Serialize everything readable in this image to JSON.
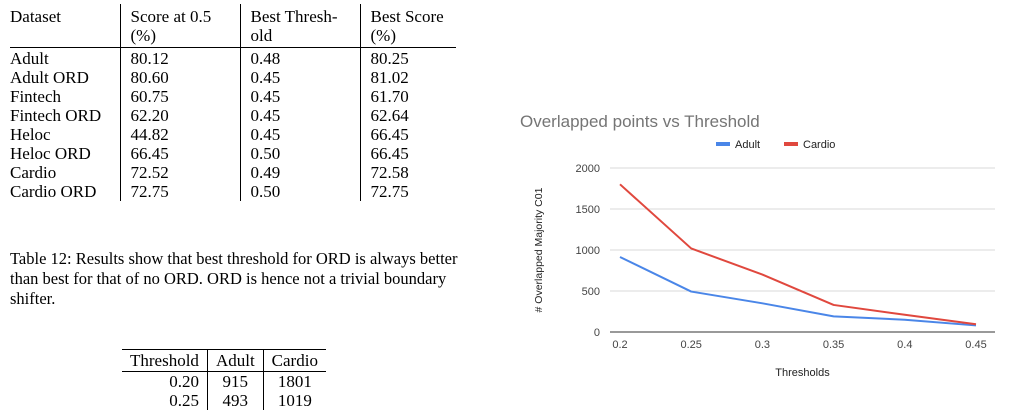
{
  "table12": {
    "header": [
      [
        "Dataset"
      ],
      [
        "Score at 0.5",
        "(%)"
      ],
      [
        "Best Thresh-",
        "old"
      ],
      [
        "Best Score",
        "(%)"
      ]
    ],
    "rows": [
      [
        "Adult",
        "80.12",
        "0.48",
        "80.25"
      ],
      [
        "Adult ORD",
        "80.60",
        "0.45",
        "81.02"
      ],
      [
        "Fintech",
        "60.75",
        "0.45",
        "61.70"
      ],
      [
        "Fintech ORD",
        "62.20",
        "0.45",
        "62.64"
      ],
      [
        "Heloc",
        "44.82",
        "0.45",
        "66.45"
      ],
      [
        "Heloc ORD",
        "66.45",
        "0.50",
        "66.45"
      ],
      [
        "Cardio",
        "72.52",
        "0.49",
        "72.58"
      ],
      [
        "Cardio ORD",
        "72.75",
        "0.50",
        "72.75"
      ]
    ],
    "caption": "Table 12: Results show that best threshold for ORD is always better than best for that of no ORD. ORD is hence not a trivial boundary shifter."
  },
  "table13": {
    "header": [
      "Threshold",
      "Adult",
      "Cardio"
    ],
    "rows": [
      [
        "0.20",
        "915",
        "1801"
      ],
      [
        "0.25",
        "493",
        "1019"
      ]
    ]
  },
  "chart_data": {
    "type": "line",
    "title": "Overlapped points vs Threshold",
    "xlabel": "Thresholds",
    "ylabel": "# Overlapped Majority C01",
    "x": [
      0.2,
      0.25,
      0.3,
      0.35,
      0.4,
      0.45
    ],
    "x_tick_labels": [
      "0.2",
      "0.25",
      "0.3",
      "0.35",
      "0.4",
      "0.45"
    ],
    "y_ticks": [
      0,
      500,
      1000,
      1500,
      2000
    ],
    "ylim": [
      0,
      2000
    ],
    "grid": true,
    "legend": "top",
    "series": [
      {
        "name": "Adult",
        "color": "#4a86e8",
        "values": [
          915,
          493,
          350,
          190,
          150,
          80
        ]
      },
      {
        "name": "Cardio",
        "color": "#e0483e",
        "values": [
          1801,
          1019,
          700,
          330,
          210,
          95
        ]
      }
    ]
  }
}
